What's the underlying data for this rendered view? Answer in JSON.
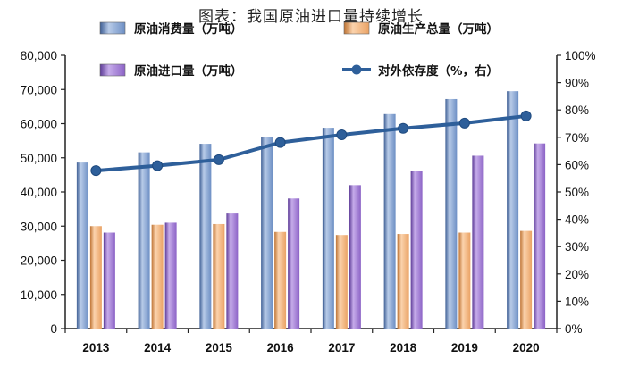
{
  "title": "图表：我国原油进口量持续增长",
  "chart_data": {
    "type": "bar",
    "categories": [
      "2013",
      "2014",
      "2015",
      "2016",
      "2017",
      "2018",
      "2019",
      "2020"
    ],
    "series": [
      {
        "name": "原油消费量（万吨）",
        "type": "bar",
        "axis": "left",
        "color": "#5b7fb8",
        "values": [
          48600,
          51600,
          54100,
          56100,
          58800,
          62800,
          67200,
          69500
        ]
      },
      {
        "name": "原油生产总量（万吨）",
        "type": "bar",
        "axis": "left",
        "color": "#e39a5b",
        "values": [
          30000,
          30400,
          30600,
          28300,
          27400,
          27700,
          28100,
          28600
        ]
      },
      {
        "name": "原油进口量（万吨）",
        "type": "bar",
        "axis": "left",
        "color": "#8a62c2",
        "values": [
          28100,
          31000,
          33700,
          38100,
          42000,
          46100,
          50600,
          54200
        ]
      },
      {
        "name": "对外依存度（%，右）",
        "type": "line",
        "axis": "right",
        "color": "#2e5f9a",
        "values": [
          57.8,
          59.6,
          61.8,
          68.1,
          70.9,
          73.3,
          75.2,
          77.8
        ]
      }
    ],
    "y_left": {
      "min": 0,
      "max": 80000,
      "ticks": [
        "0",
        "10,000",
        "20,000",
        "30,000",
        "40,000",
        "50,000",
        "60,000",
        "70,000",
        "80,000"
      ]
    },
    "y_right": {
      "min": 0,
      "max": 100,
      "ticks": [
        "0%",
        "10%",
        "20%",
        "30%",
        "40%",
        "50%",
        "60%",
        "70%",
        "80%",
        "90%",
        "100%"
      ]
    },
    "grid": false,
    "legend_position": "top"
  }
}
